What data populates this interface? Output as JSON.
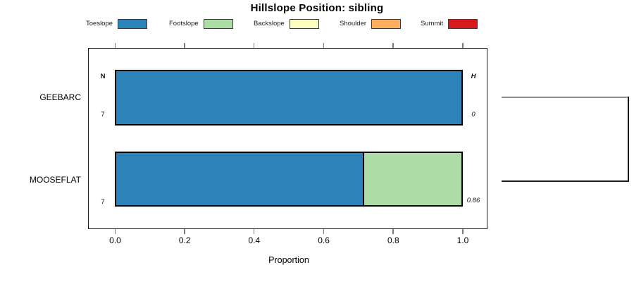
{
  "title": "Hillslope Position: sibling",
  "legend": {
    "items": [
      {
        "label": "Toeslope",
        "color": "#2B83BA"
      },
      {
        "label": "Footslope",
        "color": "#ABDDA4"
      },
      {
        "label": "Backslope",
        "color": "#FFFFBF"
      },
      {
        "label": "Shoulder",
        "color": "#FDAE61"
      },
      {
        "label": "Summit",
        "color": "#D7191C"
      }
    ]
  },
  "axis": {
    "label": "Proportion",
    "ticks": [
      "0.0",
      "0.2",
      "0.4",
      "0.6",
      "0.8",
      "1.0"
    ]
  },
  "annotations": {
    "n_header": "N",
    "h_header": "H",
    "n_values": [
      "7",
      "7"
    ],
    "h_values": [
      "0",
      "0.86"
    ]
  },
  "chart_data": {
    "type": "bar",
    "orientation": "horizontal",
    "stacked": true,
    "title": "Hillslope Position: sibling",
    "xlabel": "Proportion",
    "xlim": [
      0,
      1
    ],
    "grid": false,
    "legend_position": "top",
    "categories": [
      "GEEBARC",
      "MOOSEFLAT"
    ],
    "sample_sizes": [
      7,
      7
    ],
    "shannon_entropy": [
      0,
      0.86
    ],
    "series": [
      {
        "name": "Toeslope",
        "color": "#2B83BA",
        "values": [
          1.0,
          0.714
        ]
      },
      {
        "name": "Footslope",
        "color": "#ABDDA4",
        "values": [
          0.0,
          0.286
        ]
      },
      {
        "name": "Backslope",
        "color": "#FFFFBF",
        "values": [
          0.0,
          0.0
        ]
      },
      {
        "name": "Shoulder",
        "color": "#FDAE61",
        "values": [
          0.0,
          0.0
        ]
      },
      {
        "name": "Summit",
        "color": "#D7191C",
        "values": [
          0.0,
          0.0
        ]
      }
    ],
    "dendrogram": {
      "joined_pair": [
        "GEEBARC",
        "MOOSEFLAT"
      ]
    }
  }
}
